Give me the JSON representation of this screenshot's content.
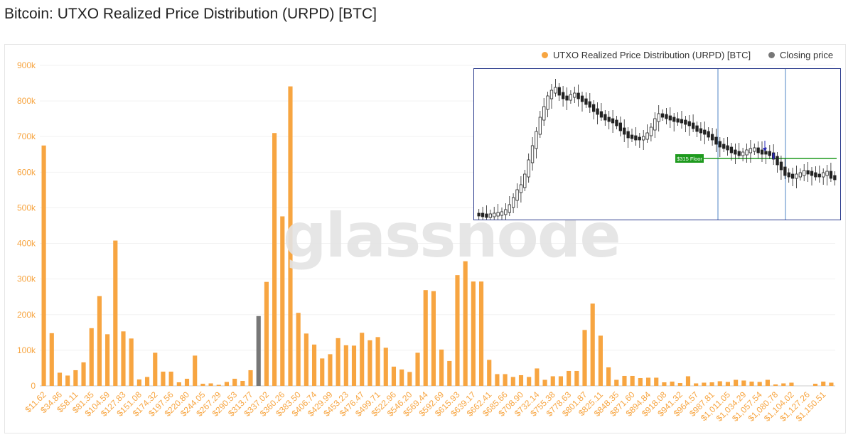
{
  "page": {
    "title": "Bitcoin: UTXO Realized Price Distribution (URPD) [BTC]",
    "watermark": "glassnode"
  },
  "legend": {
    "items": [
      {
        "label": "UTXO Realized Price Distribution (URPD) [BTC]",
        "color": "#f7a541"
      },
      {
        "label": "Closing price",
        "color": "#777777"
      }
    ]
  },
  "inset": {
    "floor_label": "$315 Floor",
    "floor_color": "#1e9a1e",
    "marker_color": "#2a2ab8",
    "vline_color": "#4f86c6"
  },
  "chart_data": {
    "type": "bar",
    "title": "Bitcoin: UTXO Realized Price Distribution (URPD) [BTC]",
    "y_ticks": [
      "0",
      "100k",
      "200k",
      "300k",
      "400k",
      "500k",
      "600k",
      "700k",
      "800k",
      "900k"
    ],
    "ylim": [
      0,
      900000
    ],
    "x_tick_labels": [
      "$11.62",
      "$34.86",
      "$58.11",
      "$81.35",
      "$104.59",
      "$127.83",
      "$151.08",
      "$174.32",
      "$197.56",
      "$220.80",
      "$244.05",
      "$267.29",
      "$290.53",
      "$313.77",
      "$337.02",
      "$360.26",
      "$383.50",
      "$406.74",
      "$429.99",
      "$453.23",
      "$476.47",
      "$499.71",
      "$522.96",
      "$546.20",
      "$569.44",
      "$592.69",
      "$615.93",
      "$639.17",
      "$662.41",
      "$685.66",
      "$708.90",
      "$732.14",
      "$755.38",
      "$778.63",
      "$801.87",
      "$825.11",
      "$848.35",
      "$871.60",
      "$894.84",
      "$918.08",
      "$941.32",
      "$964.57",
      "$987.81",
      "$1,011.05",
      "$1,034.29",
      "$1,057.54",
      "$1,080.78",
      "$1,104.02",
      "$1,127.26",
      "$1,150.51"
    ],
    "bucket_start": 11.62,
    "bucket_step": 11.62,
    "closing_price_index": 27,
    "values": [
      675000,
      148000,
      37000,
      29000,
      44000,
      66000,
      162000,
      252000,
      145000,
      408000,
      153000,
      133000,
      18000,
      25000,
      93000,
      40000,
      40000,
      10000,
      20000,
      85000,
      6000,
      7000,
      3000,
      11000,
      20000,
      14000,
      44000,
      196000,
      292000,
      710000,
      476000,
      841000,
      205000,
      147000,
      116000,
      77000,
      89000,
      134000,
      114000,
      113000,
      149000,
      128000,
      137000,
      107000,
      54000,
      46000,
      39000,
      93000,
      269000,
      266000,
      102000,
      70000,
      311000,
      350000,
      293000,
      293000,
      73000,
      33000,
      33000,
      25000,
      30000,
      25000,
      49000,
      17000,
      27000,
      27000,
      42000,
      42000,
      157000,
      231000,
      141000,
      52000,
      17000,
      28000,
      28000,
      22000,
      23000,
      23000,
      10000,
      12000,
      8000,
      27000,
      7000,
      9000,
      10000,
      13000,
      11000,
      17000,
      15000,
      12000,
      11000,
      17000,
      4000,
      7000,
      9000,
      0,
      0,
      6000,
      12000,
      9000
    ],
    "colors": {
      "bar": "#f7a541",
      "closing": "#777777",
      "axis": "#f7a541"
    },
    "grid": true,
    "legend_position": "top-right"
  }
}
